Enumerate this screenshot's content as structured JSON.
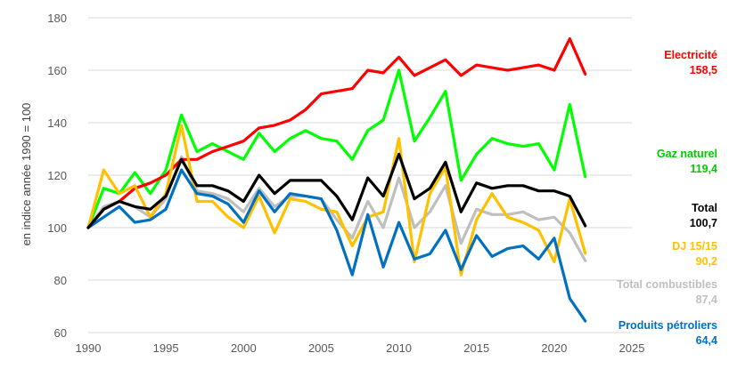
{
  "chart_data": {
    "type": "line",
    "title": "",
    "xlabel": "",
    "ylabel": "en indice année 1990 = 100",
    "xlim": [
      1990,
      2025
    ],
    "ylim": [
      60,
      180
    ],
    "xticks": [
      "1990",
      "1995",
      "2000",
      "2005",
      "2010",
      "2015",
      "2020",
      "2025"
    ],
    "yticks": [
      "60",
      "80",
      "100",
      "120",
      "140",
      "160",
      "180"
    ],
    "grid": "horizontal",
    "x": [
      1990,
      1991,
      1992,
      1993,
      1994,
      1995,
      1996,
      1997,
      1998,
      1999,
      2000,
      2001,
      2002,
      2003,
      2004,
      2005,
      2006,
      2007,
      2008,
      2009,
      2010,
      2011,
      2012,
      2013,
      2014,
      2015,
      2016,
      2017,
      2018,
      2019,
      2020,
      2021,
      2022
    ],
    "series": [
      {
        "id": "electricite",
        "name": "Electricité",
        "value_label": "158,5",
        "color": "#ff0000",
        "values": [
          100,
          107,
          110,
          115,
          117,
          120,
          126,
          126,
          129,
          131,
          133,
          138,
          139,
          141,
          145,
          151,
          152,
          153,
          160,
          159,
          165,
          158,
          161,
          164,
          158,
          162,
          161,
          160,
          161,
          162,
          160,
          172,
          158.5
        ]
      },
      {
        "id": "gaz",
        "name": "Gaz naturel",
        "value_label": "119,4",
        "color": "#00ff00",
        "values": [
          100,
          115,
          113,
          121,
          113,
          122,
          143,
          129,
          132,
          129,
          126,
          136,
          129,
          134,
          137,
          134,
          133,
          126,
          137,
          141,
          160,
          133,
          142,
          152,
          118,
          128,
          134,
          132,
          131,
          132,
          122,
          147,
          119.4
        ]
      },
      {
        "id": "total",
        "name": "Total",
        "value_label": "100,7",
        "color": "#000000",
        "values": [
          100,
          107,
          110,
          108,
          107,
          112,
          126,
          116,
          116,
          114,
          110,
          120,
          113,
          118,
          118,
          118,
          112,
          103,
          119,
          112,
          128,
          111,
          115,
          125,
          106,
          117,
          115,
          116,
          116,
          114,
          114,
          112,
          100.7
        ]
      },
      {
        "id": "dj",
        "name": "DJ 15/15",
        "value_label": "90,2",
        "color": "#ffc000",
        "values": [
          100,
          122,
          113,
          116,
          104,
          113,
          139,
          110,
          110,
          104,
          100,
          112,
          98,
          111,
          110,
          107,
          106,
          93,
          104,
          106,
          134,
          87,
          113,
          123,
          82,
          103,
          113,
          104,
          102,
          99,
          87,
          111,
          90.2
        ]
      },
      {
        "id": "combustibles",
        "name": "Total combustibles",
        "value_label": "87,4",
        "color": "#bfbfbf",
        "values": [
          100,
          108,
          110,
          108,
          104,
          111,
          127,
          114,
          113,
          111,
          106,
          115,
          108,
          112,
          112,
          111,
          103,
          96,
          110,
          100,
          119,
          100,
          106,
          116,
          94,
          107,
          105,
          105,
          106,
          103,
          104,
          98,
          87.4
        ]
      },
      {
        "id": "petroliers",
        "name": "Produits pétroliers",
        "value_label": "64,4",
        "color": "#0070c0",
        "values": [
          100,
          104,
          108,
          102,
          103,
          107,
          122,
          113,
          112,
          109,
          102,
          114,
          106,
          113,
          112,
          111,
          99,
          82,
          105,
          85,
          102,
          88,
          90,
          99,
          84,
          97,
          89,
          92,
          93,
          88,
          96,
          73,
          64.4
        ]
      }
    ]
  }
}
